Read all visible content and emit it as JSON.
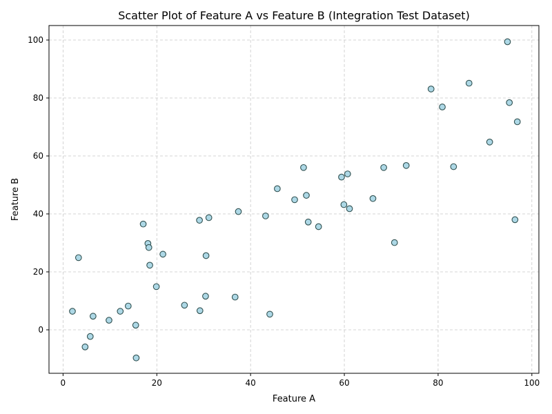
{
  "chart_data": {
    "type": "scatter",
    "title": "Scatter Plot of Feature A vs Feature B (Integration Test Dataset)",
    "xlabel": "Feature A",
    "ylabel": "Feature B",
    "xlim": [
      -3,
      101.5
    ],
    "ylim": [
      -15,
      105
    ],
    "xticks": [
      0,
      20,
      40,
      60,
      80,
      100
    ],
    "yticks": [
      0,
      20,
      40,
      60,
      80,
      100
    ],
    "xtick_labels": [
      "0",
      "20",
      "40",
      "60",
      "80",
      "100"
    ],
    "ytick_labels": [
      "0",
      "20",
      "40",
      "60",
      "80",
      "100"
    ],
    "grid": true,
    "marker_fill": "#add8e6",
    "marker_edge": "#2f4f4f",
    "points": [
      [
        2.0,
        6.4
      ],
      [
        3.3,
        24.9
      ],
      [
        4.7,
        -5.9
      ],
      [
        5.8,
        -2.3
      ],
      [
        6.4,
        4.7
      ],
      [
        9.8,
        3.3
      ],
      [
        12.2,
        6.4
      ],
      [
        13.9,
        8.2
      ],
      [
        15.5,
        1.6
      ],
      [
        15.6,
        -9.7
      ],
      [
        17.1,
        36.5
      ],
      [
        18.1,
        29.8
      ],
      [
        18.3,
        28.4
      ],
      [
        18.5,
        22.3
      ],
      [
        19.9,
        14.9
      ],
      [
        21.3,
        26.1
      ],
      [
        25.9,
        8.5
      ],
      [
        29.1,
        37.8
      ],
      [
        29.2,
        6.6
      ],
      [
        30.4,
        11.6
      ],
      [
        30.5,
        25.6
      ],
      [
        31.1,
        38.7
      ],
      [
        36.7,
        11.3
      ],
      [
        37.4,
        40.8
      ],
      [
        43.2,
        39.3
      ],
      [
        44.1,
        5.4
      ],
      [
        45.7,
        48.7
      ],
      [
        49.4,
        44.9
      ],
      [
        51.3,
        56.0
      ],
      [
        51.9,
        46.4
      ],
      [
        52.3,
        37.2
      ],
      [
        54.5,
        35.6
      ],
      [
        59.4,
        52.7
      ],
      [
        59.9,
        43.2
      ],
      [
        60.7,
        53.8
      ],
      [
        61.1,
        41.8
      ],
      [
        66.1,
        45.3
      ],
      [
        68.4,
        56.0
      ],
      [
        70.7,
        30.1
      ],
      [
        73.2,
        56.7
      ],
      [
        78.5,
        83.1
      ],
      [
        80.9,
        76.9
      ],
      [
        83.3,
        56.3
      ],
      [
        86.6,
        85.1
      ],
      [
        91.0,
        64.8
      ],
      [
        94.8,
        99.4
      ],
      [
        95.2,
        78.4
      ],
      [
        96.4,
        38.0
      ],
      [
        96.9,
        71.8
      ]
    ]
  }
}
